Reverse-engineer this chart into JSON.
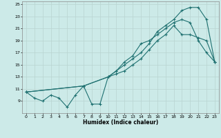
{
  "xlabel": "Humidex (Indice chaleur)",
  "bg_color": "#cceae8",
  "grid_color": "#b8d4d0",
  "line_color": "#1e7070",
  "xlim": [
    -0.5,
    23.5
  ],
  "ylim": [
    7,
    25.5
  ],
  "xticks": [
    0,
    1,
    2,
    3,
    4,
    5,
    6,
    7,
    8,
    9,
    10,
    11,
    12,
    13,
    14,
    15,
    16,
    17,
    18,
    19,
    20,
    21,
    22,
    23
  ],
  "yticks": [
    9,
    11,
    13,
    15,
    17,
    19,
    21,
    23,
    25
  ],
  "line1_x": [
    0,
    1,
    2,
    3,
    4,
    5,
    6,
    7,
    8,
    9,
    10,
    11,
    12,
    13,
    14,
    15,
    16,
    17,
    18,
    19,
    20,
    21,
    22,
    23
  ],
  "line1_y": [
    10.5,
    9.5,
    9,
    10,
    9.5,
    8,
    10,
    11.5,
    8.5,
    8.5,
    13,
    14,
    15.5,
    16.5,
    18.5,
    19,
    20,
    21,
    22,
    22.5,
    22,
    19,
    17,
    15.5
  ],
  "line2_x": [
    0,
    7,
    10,
    11,
    12,
    13,
    14,
    15,
    16,
    17,
    18,
    19,
    20,
    21,
    22,
    23
  ],
  "line2_y": [
    10.5,
    11.5,
    13,
    13.5,
    14,
    15,
    16,
    17.5,
    19,
    20,
    21.5,
    20,
    20,
    19.5,
    19,
    15.5
  ],
  "line3_x": [
    0,
    7,
    10,
    11,
    12,
    13,
    14,
    15,
    16,
    17,
    18,
    19,
    20,
    21,
    22,
    23
  ],
  "line3_y": [
    10.5,
    11.5,
    13,
    14,
    15,
    16,
    17,
    18.5,
    20.5,
    21.5,
    22.5,
    24,
    24.5,
    24.5,
    22.5,
    15.5
  ]
}
